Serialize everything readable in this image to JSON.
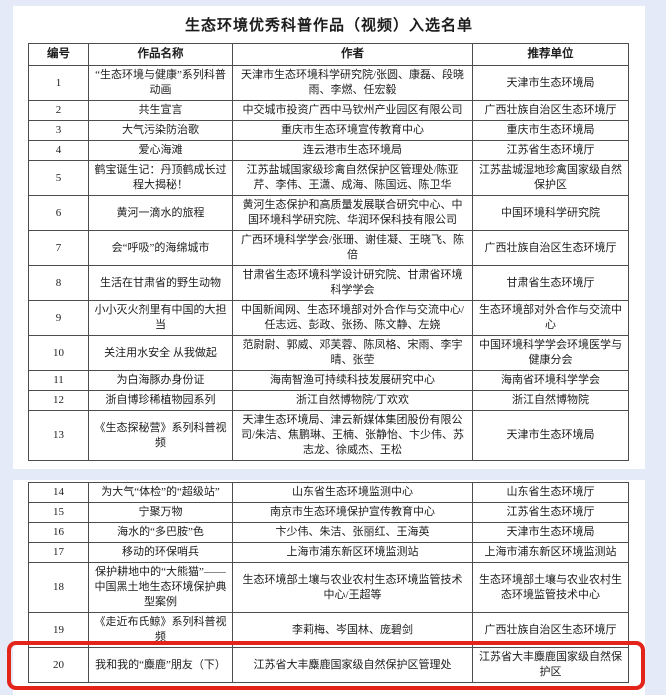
{
  "page": {
    "title": "生态环境优秀科普作品（视频）入选名单",
    "background_color": "#e4eaf8",
    "sheet_color": "#ffffff",
    "highlight_color": "#e3241b"
  },
  "table": {
    "headers": [
      "编号",
      "作品名称",
      "作者",
      "推荐单位"
    ],
    "highlighted_row_no": "20",
    "sections": [
      {
        "rows": [
          {
            "no": "1",
            "title": "“生态环境与健康”系列科普动画",
            "author": "天津市生态环境科学研究院/张圆、康磊、段晓雨、李燃、任宏毅",
            "unit": "天津市生态环境局"
          },
          {
            "no": "2",
            "title": "共生宣言",
            "author": "中交城市投资广西中马钦州产业园区有限公司",
            "unit": "广西壮族自治区生态环境厅"
          },
          {
            "no": "3",
            "title": "大气污染防治歌",
            "author": "重庆市生态环境宣传教育中心",
            "unit": "重庆市生态环境局"
          },
          {
            "no": "4",
            "title": "爱心海滩",
            "author": "连云港市生态环境局",
            "unit": "江苏省生态环境厅"
          },
          {
            "no": "5",
            "title": "鹤宝诞生记：丹顶鹤成长过程大揭秘！",
            "author": "江苏盐城国家级珍禽自然保护区管理处/陈亚芹、李伟、王潇、成海、陈国远、陈卫华",
            "unit": "江苏盐城湿地珍禽国家级自然保护区"
          },
          {
            "no": "6",
            "title": "黄河一滴水的旅程",
            "author": "黄河生态保护和高质量发展联合研究中心、中国环境科学研究院、华润环保科技有限公司",
            "unit": "中国环境科学研究院"
          },
          {
            "no": "7",
            "title": "会“呼吸”的海绵城市",
            "author": "广西环境科学学会/张珊、谢佳凝、王晓飞、陈倍",
            "unit": "广西壮族自治区生态环境厅"
          },
          {
            "no": "8",
            "title": "生活在甘肃省的野生动物",
            "author": "甘肃省生态环境科学设计研究院、甘肃省环境科学学会",
            "unit": "甘肃省生态环境厅"
          },
          {
            "no": "9",
            "title": "小小灭火剂里有中国的大担当",
            "author": "中国新闻网、生态环境部对外合作与交流中心/任志远、彭政、张扬、陈文静、左娆",
            "unit": "生态环境部对外合作与交流中心"
          },
          {
            "no": "10",
            "title": "关注用水安全 从我做起",
            "author": "范尉尉、郭威、邓芙蓉、陈凤格、宋雨、李宇晴、张茔",
            "unit": "中国环境科学学会环境医学与健康分会"
          },
          {
            "no": "11",
            "title": "为白海豚办身份证",
            "author": "海南智渔可持续科技发展研究中心",
            "unit": "海南省环境科学学会"
          },
          {
            "no": "12",
            "title": "浙自博珍稀植物园系列",
            "author": "浙江自然博物院/丁欢欢",
            "unit": "浙江自然博物院"
          },
          {
            "no": "13",
            "title": "《生态探秘营》系列科普视频",
            "author": "天津生态环境局、津云新媒体集团股份有限公司/朱洁、焦鹏琳、王楠、张静怡、卞少伟、苏志龙、徐威杰、王松",
            "unit": "天津市生态环境局"
          }
        ]
      },
      {
        "rows": [
          {
            "no": "14",
            "title": "为大气“体检”的“超级站”",
            "author": "山东省生态环境监测中心",
            "unit": "山东省生态环境厅"
          },
          {
            "no": "15",
            "title": "宁聚万物",
            "author": "南京市生态环境保护宣传教育中心",
            "unit": "江苏省生态环境厅"
          },
          {
            "no": "16",
            "title": "海水的“多巴胺”色",
            "author": "卞少伟、朱洁、张丽红、王海英",
            "unit": "天津市生态环境局"
          },
          {
            "no": "17",
            "title": "移动的环保哨兵",
            "author": "上海市浦东新区环境监测站",
            "unit": "上海市浦东新区环境监测站"
          },
          {
            "no": "18",
            "title": "保护耕地中的“大熊猫”——中国黑土地生态环境保护典型案例",
            "author": "生态环境部土壤与农业农村生态环境监管技术中心/王超等",
            "unit": "生态环境部土壤与农业农村生态环境监管技术中心"
          },
          {
            "no": "19",
            "title": "《走近布氏鲸》系列科普视频",
            "author": "李莉梅、岑国林、庞碧剑",
            "unit": "广西壮族自治区生态环境厅"
          },
          {
            "no": "20",
            "title": "我和我的“麋鹿”朋友（下）",
            "author": "江苏省大丰麋鹿国家级自然保护区管理处",
            "unit": "江苏省大丰麋鹿国家级自然保护区"
          }
        ]
      }
    ]
  }
}
